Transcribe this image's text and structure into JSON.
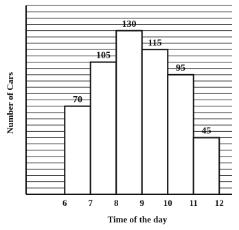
{
  "chart_data": {
    "type": "histogram",
    "x_label": "Time of the day",
    "y_label": "Number of Cars",
    "bins": [
      6,
      7,
      8,
      9,
      10,
      11,
      12
    ],
    "values": [
      70,
      105,
      130,
      115,
      95,
      45
    ],
    "color": "#ffffff",
    "xlim": [
      4.5,
      12.5
    ],
    "xticks": [
      6,
      7,
      8,
      9,
      10,
      11,
      12
    ],
    "ylim": [
      0,
      150
    ],
    "yticks": [
      0,
      5,
      10,
      15,
      20,
      25,
      30,
      35,
      40,
      45,
      50,
      55,
      60,
      65,
      70,
      75,
      80,
      85,
      90,
      95,
      100,
      105,
      110,
      115,
      120,
      125,
      130,
      135,
      140,
      145,
      150
    ],
    "grid": true
  }
}
